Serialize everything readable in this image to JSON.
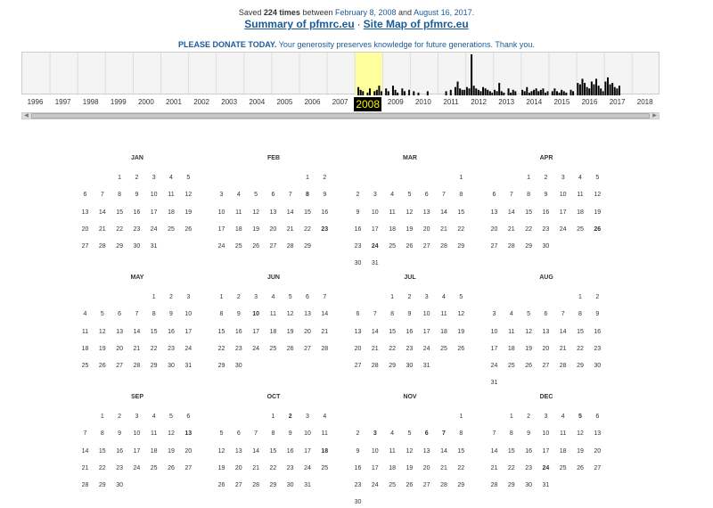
{
  "header": {
    "saved_prefix": "Saved",
    "saved_count": "224 times",
    "saved_between": "between",
    "first_date": "February 8, 2008",
    "saved_and": "and",
    "last_date": "August 16, 2017.",
    "summary_link": "Summary of pfmrc.eu",
    "separator": "·",
    "sitemap_link": "Site Map of pfmrc.eu",
    "donate_bold": "PLEASE DONATE TODAY.",
    "donate_rest": "Your generosity preserves knowledge for future generations. Thank you."
  },
  "timeline": {
    "years": [
      "1996",
      "1997",
      "1998",
      "1999",
      "2000",
      "2001",
      "2002",
      "2003",
      "2004",
      "2005",
      "2006",
      "2007",
      "2008",
      "2009",
      "2010",
      "2011",
      "2012",
      "2013",
      "2014",
      "2015",
      "2016",
      "2017",
      "2018"
    ],
    "selected_year": "2008",
    "capture_levels": {
      "2008": [
        0,
        6,
        4,
        3,
        0,
        2,
        5,
        0,
        3,
        4,
        7,
        3
      ],
      "2009": [
        0,
        5,
        3,
        0,
        7,
        4,
        2,
        0,
        5,
        3,
        0,
        4
      ],
      "2010": [
        0,
        3,
        0,
        2,
        0,
        0,
        0,
        3,
        0,
        0,
        0,
        0
      ],
      "2011": [
        0,
        0,
        0,
        3,
        0,
        4,
        0,
        6,
        10,
        5,
        4,
        4
      ],
      "2012": [
        6,
        5,
        30,
        7,
        5,
        4,
        3,
        6,
        5,
        4,
        3,
        2
      ],
      "2013": [
        4,
        3,
        9,
        3,
        2,
        0,
        5,
        2,
        4,
        3,
        0,
        0
      ],
      "2014": [
        4,
        3,
        6,
        2,
        3,
        4,
        5,
        3,
        4,
        5,
        2,
        3
      ],
      "2015": [
        0,
        3,
        5,
        3,
        2,
        4,
        3,
        2,
        0,
        4,
        3,
        0
      ],
      "2016": [
        9,
        8,
        12,
        9,
        6,
        5,
        10,
        8,
        12,
        7,
        5,
        3
      ],
      "2017": [
        10,
        13,
        8,
        9,
        6,
        5,
        7,
        0,
        0,
        0,
        0,
        0
      ]
    },
    "bar_color": "#000000",
    "selected_color": "#ffff9e"
  },
  "calendar": {
    "months": [
      {
        "name": "JAN",
        "offset": 2,
        "days": 31,
        "snaps": []
      },
      {
        "name": "FEB",
        "offset": 5,
        "days": 29,
        "snaps": [
          8,
          23
        ]
      },
      {
        "name": "MAR",
        "offset": 6,
        "days": 31,
        "snaps": [
          24
        ]
      },
      {
        "name": "APR",
        "offset": 2,
        "days": 30,
        "snaps": [
          26
        ]
      },
      {
        "name": "MAY",
        "offset": 4,
        "days": 31,
        "snaps": []
      },
      {
        "name": "JUN",
        "offset": 0,
        "days": 30,
        "snaps": [
          10
        ]
      },
      {
        "name": "JUL",
        "offset": 2,
        "days": 31,
        "snaps": []
      },
      {
        "name": "AUG",
        "offset": 5,
        "days": 31,
        "snaps": []
      },
      {
        "name": "SEP",
        "offset": 1,
        "days": 30,
        "snaps": [
          13
        ]
      },
      {
        "name": "OCT",
        "offset": 3,
        "days": 31,
        "snaps": [
          2,
          18
        ]
      },
      {
        "name": "NOV",
        "offset": 6,
        "days": 30,
        "snaps": [
          3,
          6,
          7
        ]
      },
      {
        "name": "DEC",
        "offset": 1,
        "days": 31,
        "snaps": [
          5,
          24
        ]
      }
    ],
    "highlight_color": "#b9e1f4"
  }
}
